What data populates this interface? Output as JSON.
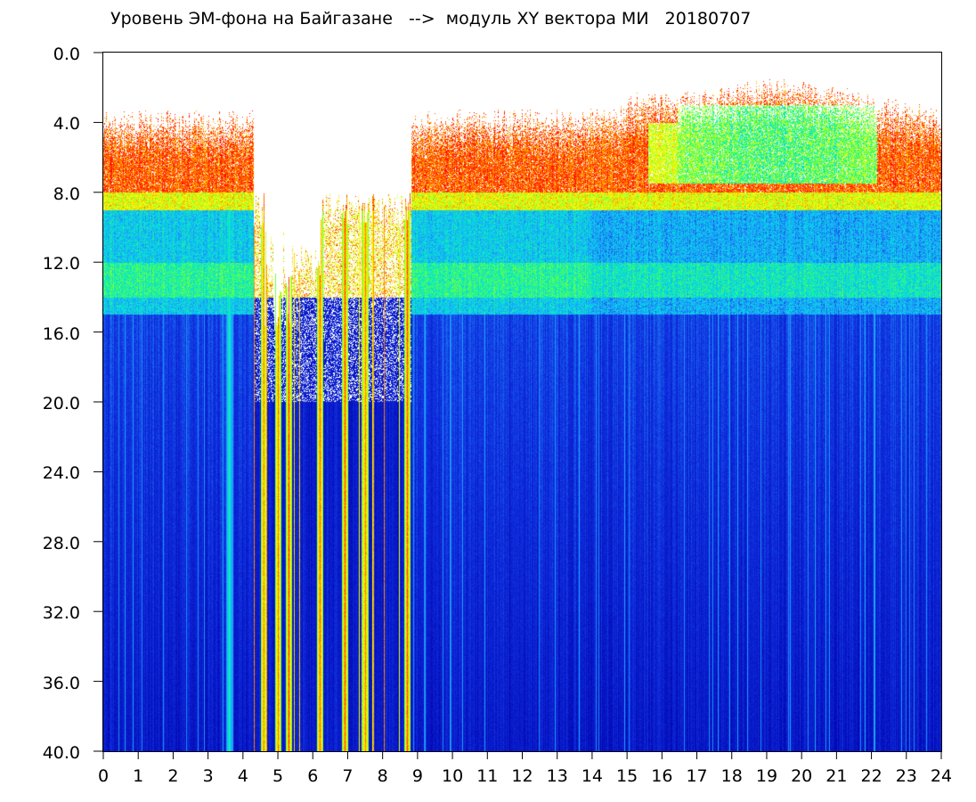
{
  "chart_data": {
    "type": "heatmap",
    "title": "Уровень ЭМ-фона на Байгазане   -->  модуль XY вектора МИ   20180707",
    "xlabel": "",
    "ylabel": "",
    "x_range": [
      0,
      24
    ],
    "y_range": [
      0,
      40
    ],
    "y_inverted": true,
    "x_ticks": [
      0,
      1,
      2,
      3,
      4,
      5,
      6,
      7,
      8,
      9,
      10,
      11,
      12,
      13,
      14,
      15,
      16,
      17,
      18,
      19,
      20,
      21,
      22,
      23,
      24
    ],
    "x_tick_labels": [
      "0",
      "1",
      "2",
      "3",
      "4",
      "5",
      "6",
      "7",
      "8",
      "9",
      "10",
      "11",
      "12",
      "13",
      "14",
      "15",
      "16",
      "17",
      "18",
      "19",
      "20",
      "21",
      "22",
      "23",
      "24"
    ],
    "y_ticks": [
      0,
      4,
      8,
      12,
      16,
      20,
      24,
      28,
      32,
      36,
      40
    ],
    "y_tick_labels": [
      "0.0",
      "4.0",
      "8.0",
      "12.0",
      "16.0",
      "20.0",
      "24.0",
      "28.0",
      "32.0",
      "36.0",
      "40.0"
    ],
    "colormap": [
      "#0000aa",
      "#1030e0",
      "#20a0ff",
      "#00e0e0",
      "#40ff60",
      "#c0ff20",
      "#ffff00",
      "#ff8000",
      "#ff0000"
    ],
    "background_color": "#ffffff",
    "grid": false,
    "legend": "none",
    "bands": [
      {
        "y_from": 3,
        "y_to": 8,
        "level": "high (red/yellow speckle)"
      },
      {
        "y_from": 8,
        "y_to": 9,
        "level": "yellow/green"
      },
      {
        "y_from": 9,
        "y_to": 15,
        "level": "medium (cyan/blue)"
      },
      {
        "y_from": 15,
        "y_to": 40,
        "level": "low (deep blue)"
      }
    ],
    "quiet_gap_hours": [
      4.3,
      8.8
    ],
    "intense_verticals_hours": [
      3.6,
      4.6,
      5.0,
      5.3,
      6.2,
      6.9,
      7.5,
      8.7
    ]
  }
}
